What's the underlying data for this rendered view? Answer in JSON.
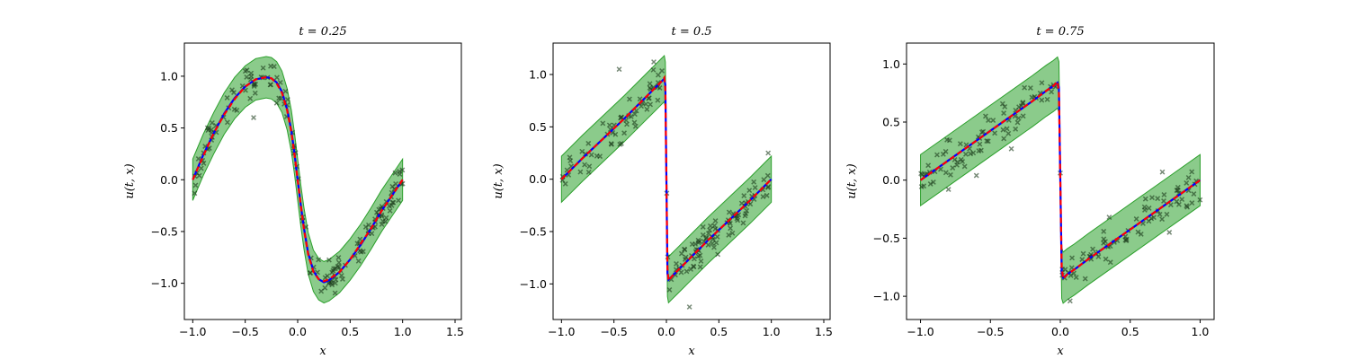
{
  "colors": {
    "band": "#2ca02c",
    "exact": "#0000ff",
    "prediction": "#ff0000",
    "points": "#1a3a1a"
  },
  "chart_data": [
    {
      "type": "line",
      "title": "t = 0.25",
      "xlabel": "x",
      "ylabel": "u(t, x)",
      "xlim": [
        -1.08,
        1.56
      ],
      "ylim": [
        -1.35,
        1.32
      ],
      "xticks": [
        -1.0,
        -0.5,
        0.0,
        0.5,
        1.0,
        1.5
      ],
      "xtick_labels": [
        "−1.0",
        "−0.5",
        "0.0",
        "0.5",
        "1.0",
        "1.5"
      ],
      "yticks": [
        -1.0,
        -0.5,
        0.0,
        0.5,
        1.0
      ],
      "ytick_labels": [
        "−1.0",
        "−0.5",
        "0.0",
        "0.5",
        "1.0"
      ],
      "x": [
        -1.0,
        -0.9,
        -0.8,
        -0.7,
        -0.6,
        -0.5,
        -0.4,
        -0.3,
        -0.25,
        -0.2,
        -0.15,
        -0.1,
        -0.06,
        -0.03,
        0.0,
        0.03,
        0.06,
        0.1,
        0.15,
        0.2,
        0.25,
        0.3,
        0.4,
        0.5,
        0.6,
        0.7,
        0.8,
        0.9,
        1.0
      ],
      "series": [
        {
          "role": "exact",
          "values": [
            0.0,
            0.24,
            0.45,
            0.64,
            0.79,
            0.9,
            0.97,
            0.99,
            0.98,
            0.94,
            0.85,
            0.68,
            0.47,
            0.25,
            0.0,
            -0.25,
            -0.47,
            -0.71,
            -0.88,
            -0.96,
            -0.99,
            -0.97,
            -0.89,
            -0.77,
            -0.63,
            -0.47,
            -0.3,
            -0.15,
            0.0
          ]
        },
        {
          "role": "prediction",
          "values": [
            0.0,
            0.23,
            0.45,
            0.63,
            0.78,
            0.9,
            0.97,
            0.99,
            0.98,
            0.93,
            0.84,
            0.67,
            0.46,
            0.24,
            0.0,
            -0.25,
            -0.48,
            -0.72,
            -0.89,
            -0.96,
            -0.98,
            -0.96,
            -0.89,
            -0.77,
            -0.62,
            -0.47,
            -0.3,
            -0.15,
            0.0
          ]
        }
      ],
      "band_width": 0.2,
      "points": {
        "count": 150,
        "noise": 0.08,
        "outliers": [
          [
            -0.42,
            0.6
          ],
          [
            0.12,
            -0.9
          ],
          [
            0.88,
            -0.3
          ],
          [
            0.97,
            0.08
          ]
        ]
      }
    },
    {
      "type": "line",
      "title": "t = 0.5",
      "xlabel": "x",
      "ylabel": "u(t, x)",
      "xlim": [
        -1.08,
        1.56
      ],
      "ylim": [
        -1.34,
        1.3
      ],
      "xticks": [
        -1.0,
        -0.5,
        0.0,
        0.5,
        1.0,
        1.5
      ],
      "xtick_labels": [
        "−1.0",
        "−0.5",
        "0.0",
        "0.5",
        "1.0",
        "1.5"
      ],
      "yticks": [
        -1.0,
        -0.5,
        0.0,
        0.5,
        1.0
      ],
      "ytick_labels": [
        "−1.0",
        "−0.5",
        "0.0",
        "0.5",
        "1.0"
      ],
      "x": [
        -1.0,
        -0.8,
        -0.6,
        -0.4,
        -0.2,
        -0.1,
        -0.05,
        -0.02,
        -0.01,
        0.0,
        0.01,
        0.02,
        0.05,
        0.1,
        0.2,
        0.4,
        0.6,
        0.8,
        1.0
      ],
      "series": [
        {
          "role": "exact",
          "values": [
            0.0,
            0.2,
            0.39,
            0.58,
            0.78,
            0.88,
            0.93,
            0.96,
            0.9,
            0.0,
            -0.9,
            -0.96,
            -0.93,
            -0.88,
            -0.78,
            -0.58,
            -0.39,
            -0.2,
            0.0
          ]
        },
        {
          "role": "prediction",
          "values": [
            0.0,
            0.2,
            0.39,
            0.58,
            0.78,
            0.88,
            0.93,
            0.97,
            0.85,
            0.0,
            -0.85,
            -0.97,
            -0.93,
            -0.88,
            -0.78,
            -0.58,
            -0.39,
            -0.2,
            0.0
          ]
        }
      ],
      "band_width": 0.22,
      "points": {
        "count": 150,
        "noise": 0.08,
        "outliers": [
          [
            -0.45,
            1.05
          ],
          [
            -0.12,
            1.12
          ],
          [
            0.22,
            -1.22
          ],
          [
            0.75,
            -0.35
          ],
          [
            0.92,
            -0.1
          ],
          [
            0.97,
            0.25
          ]
        ]
      }
    },
    {
      "type": "line",
      "title": "t = 0.75",
      "xlabel": "x",
      "ylabel": "u(t, x)",
      "xlim": [
        -1.1,
        1.1
      ],
      "ylim": [
        -1.2,
        1.18
      ],
      "xticks": [
        -1.0,
        -0.5,
        0.0,
        0.5,
        1.0
      ],
      "xtick_labels": [
        "−1.0",
        "−0.5",
        "0.0",
        "0.5",
        "1.0"
      ],
      "yticks": [
        -1.0,
        -0.5,
        0.0,
        0.5,
        1.0
      ],
      "ytick_labels": [
        "−1.0",
        "−0.5",
        "0.0",
        "0.5",
        "1.0"
      ],
      "x": [
        -1.0,
        -0.8,
        -0.6,
        -0.4,
        -0.2,
        -0.1,
        -0.05,
        -0.02,
        -0.01,
        0.0,
        0.01,
        0.02,
        0.05,
        0.1,
        0.2,
        0.4,
        0.6,
        0.8,
        1.0
      ],
      "series": [
        {
          "role": "exact",
          "values": [
            0.0,
            0.17,
            0.34,
            0.51,
            0.68,
            0.77,
            0.81,
            0.84,
            0.8,
            0.0,
            -0.8,
            -0.84,
            -0.81,
            -0.77,
            -0.68,
            -0.51,
            -0.34,
            -0.17,
            0.0
          ]
        },
        {
          "role": "prediction",
          "values": [
            0.0,
            0.17,
            0.34,
            0.51,
            0.68,
            0.77,
            0.81,
            0.85,
            0.75,
            0.0,
            -0.75,
            -0.85,
            -0.81,
            -0.77,
            -0.68,
            -0.51,
            -0.34,
            -0.17,
            0.0
          ]
        }
      ],
      "band_width": 0.22,
      "points": {
        "count": 150,
        "noise": 0.08,
        "outliers": [
          [
            -0.8,
            -0.08
          ],
          [
            -0.6,
            0.04
          ],
          [
            -0.35,
            0.27
          ],
          [
            0.07,
            -1.04
          ],
          [
            0.22,
            -0.68
          ],
          [
            0.35,
            -0.32
          ],
          [
            0.73,
            0.07
          ],
          [
            0.78,
            -0.45
          ]
        ]
      }
    }
  ]
}
